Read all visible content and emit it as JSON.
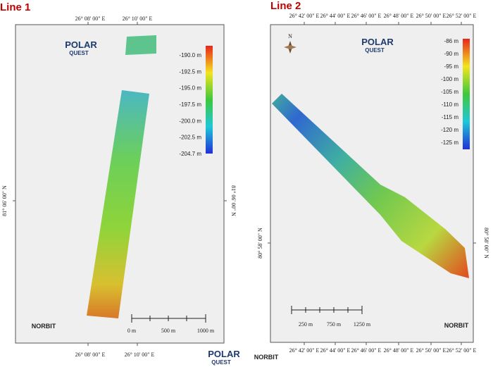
{
  "panels": [
    {
      "title": "Line 1",
      "top_labels": [
        "26° 08' 00\" E",
        "26° 10' 00\" E"
      ],
      "bottom_labels": [
        "26° 08' 00\" E",
        "26° 10' 00\" E"
      ],
      "left_label": "81° 06' 00\" N",
      "right_label": "81° 06' 00\" N",
      "colorbar_labels": [
        "-190.0 m",
        "-192.5 m",
        "-195.0 m",
        "-197.5 m",
        "-200.0 m",
        "-202.5 m",
        "-204.7 m"
      ],
      "scale_labels": [
        "0 m",
        "500 m",
        "1000 m"
      ],
      "logo": {
        "line1": "POLAR",
        "line2": "QUEST"
      },
      "footer_logo": "NORBIT"
    },
    {
      "title": "Line 2",
      "top_labels": [
        "26° 42' 00\" E",
        "26° 44' 00\" E",
        "26° 46' 00\" E",
        "26° 48' 00\" E",
        "26° 50' 00\" E",
        "26° 52' 00\" E"
      ],
      "bottom_labels": [
        "26° 42' 00\" E",
        "26° 44' 00\" E",
        "26° 46' 00\" E",
        "26° 48' 00\" E",
        "26° 50' 00\" E",
        "26° 52' 00\" E"
      ],
      "left_label": "80° 58' 00\" N",
      "right_label": "80° 58' 00\" N",
      "north": "N",
      "colorbar_labels": [
        "-86 m",
        "-90 m",
        "-95 m",
        "-100 m",
        "-105 m",
        "-110 m",
        "-115 m",
        "-120 m",
        "-125 m"
      ],
      "scale_labels": [
        "250 m",
        "750 m",
        "1250 m"
      ],
      "logo": {
        "line1": "POLAR",
        "line2": "QUEST"
      },
      "footer_logo": "NORBIT"
    }
  ],
  "footer": {
    "logo1_line1": "POLAR",
    "logo1_line2": "QUEST",
    "logo2": "NORBIT"
  }
}
